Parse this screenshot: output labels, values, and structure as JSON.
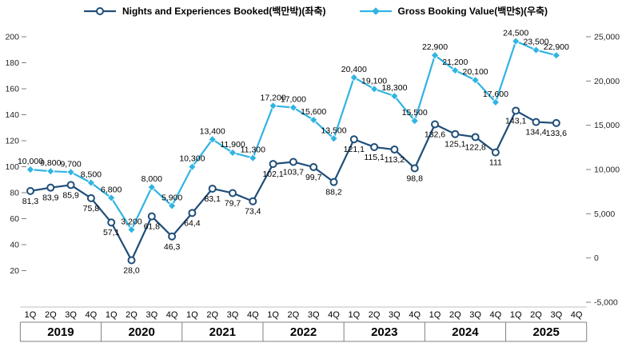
{
  "legend": {
    "nights": {
      "label": "Nights and Experiences Booked(백만박)(좌축)"
    },
    "gbv": {
      "label": "Gross Booking Value(백만$)(우축)"
    }
  },
  "chart_data": {
    "type": "line",
    "title": "",
    "quarters": [
      "1Q",
      "2Q",
      "3Q",
      "4Q",
      "1Q",
      "2Q",
      "3Q",
      "4Q",
      "1Q",
      "2Q",
      "3Q",
      "4Q",
      "1Q",
      "2Q",
      "3Q",
      "4Q",
      "1Q",
      "2Q",
      "3Q",
      "4Q",
      "1Q",
      "2Q",
      "3Q",
      "4Q",
      "1Q",
      "2Q",
      "3Q",
      "4Q"
    ],
    "years": [
      "2019",
      "2020",
      "2021",
      "2022",
      "2023",
      "2024",
      "2025"
    ],
    "series": [
      {
        "id": "nights",
        "name": "Nights and Experiences Booked(백만박)(좌축)",
        "axis": "left",
        "color": "#1F4E79",
        "marker": "circle",
        "label_pos": "below",
        "values": [
          81.3,
          83.9,
          85.9,
          75.8,
          57.1,
          28.0,
          61.8,
          46.3,
          64.4,
          83.1,
          79.7,
          73.4,
          102.1,
          103.7,
          99.7,
          88.2,
          121.1,
          115.1,
          113.2,
          98.8,
          132.6,
          125.1,
          122.8,
          111,
          143.1,
          134.4,
          133.6
        ],
        "labels": [
          "81,3",
          "83,9",
          "85,9",
          "75,8",
          "57,1",
          "28,0",
          "61,8",
          "46,3",
          "64,4",
          "83,1",
          "79,7",
          "73,4",
          "102,1",
          "103,7",
          "99,7",
          "88,2",
          "121,1",
          "115,1",
          "113,2",
          "98,8",
          "132,6",
          "125,1",
          "122,8",
          "111",
          "143,1",
          "134,4",
          "133,6"
        ]
      },
      {
        "id": "gbv",
        "name": "Gross Booking Value(백만$)(우축)",
        "axis": "right",
        "color": "#30B4E2",
        "marker": "diamond",
        "label_pos": "above",
        "values": [
          10000,
          9800,
          9700,
          8500,
          6800,
          3200,
          8000,
          5900,
          10300,
          13400,
          11900,
          11300,
          17200,
          17000,
          15600,
          13500,
          20400,
          19100,
          18300,
          15500,
          22900,
          21200,
          20100,
          17600,
          24500,
          23500,
          22900
        ],
        "labels": [
          "10,000",
          "9,800",
          "9,700",
          "8,500",
          "6,800",
          "3,200",
          "8,000",
          "5,900",
          "10,300",
          "13,400",
          "11,900",
          "11,300",
          "17,200",
          "17,000",
          "15,600",
          "13,500",
          "20,400",
          "19,100",
          "18,300",
          "15,500",
          "22,900",
          "21,200",
          "20,100",
          "17,600",
          "24,500",
          "23,500",
          "22,900"
        ]
      }
    ],
    "left_axis": {
      "min": 0,
      "max": 200,
      "step": 20,
      "ticks": [
        {
          "label": "200",
          "value": 200
        },
        {
          "label": "180",
          "value": 180
        },
        {
          "label": "160",
          "value": 160
        },
        {
          "label": "140",
          "value": 140
        },
        {
          "label": "120",
          "value": 120
        },
        {
          "label": "100",
          "value": 100
        },
        {
          "label": "80",
          "value": 80
        },
        {
          "label": "60",
          "value": 60
        },
        {
          "label": "40",
          "value": 40
        },
        {
          "label": "20",
          "value": 20
        }
      ]
    },
    "right_axis": {
      "min": -5000,
      "max": 25000,
      "step": 5000,
      "ticks": [
        {
          "label": "25,000",
          "value": 25000
        },
        {
          "label": "20,000",
          "value": 20000
        },
        {
          "label": "15,000",
          "value": 15000
        },
        {
          "label": "10,000",
          "value": 10000
        },
        {
          "label": "5,000",
          "value": 5000
        },
        {
          "label": "0",
          "value": 0
        },
        {
          "label": "-5,000",
          "value": -5000
        }
      ]
    },
    "grid": "off",
    "legend_position": "top-center"
  }
}
